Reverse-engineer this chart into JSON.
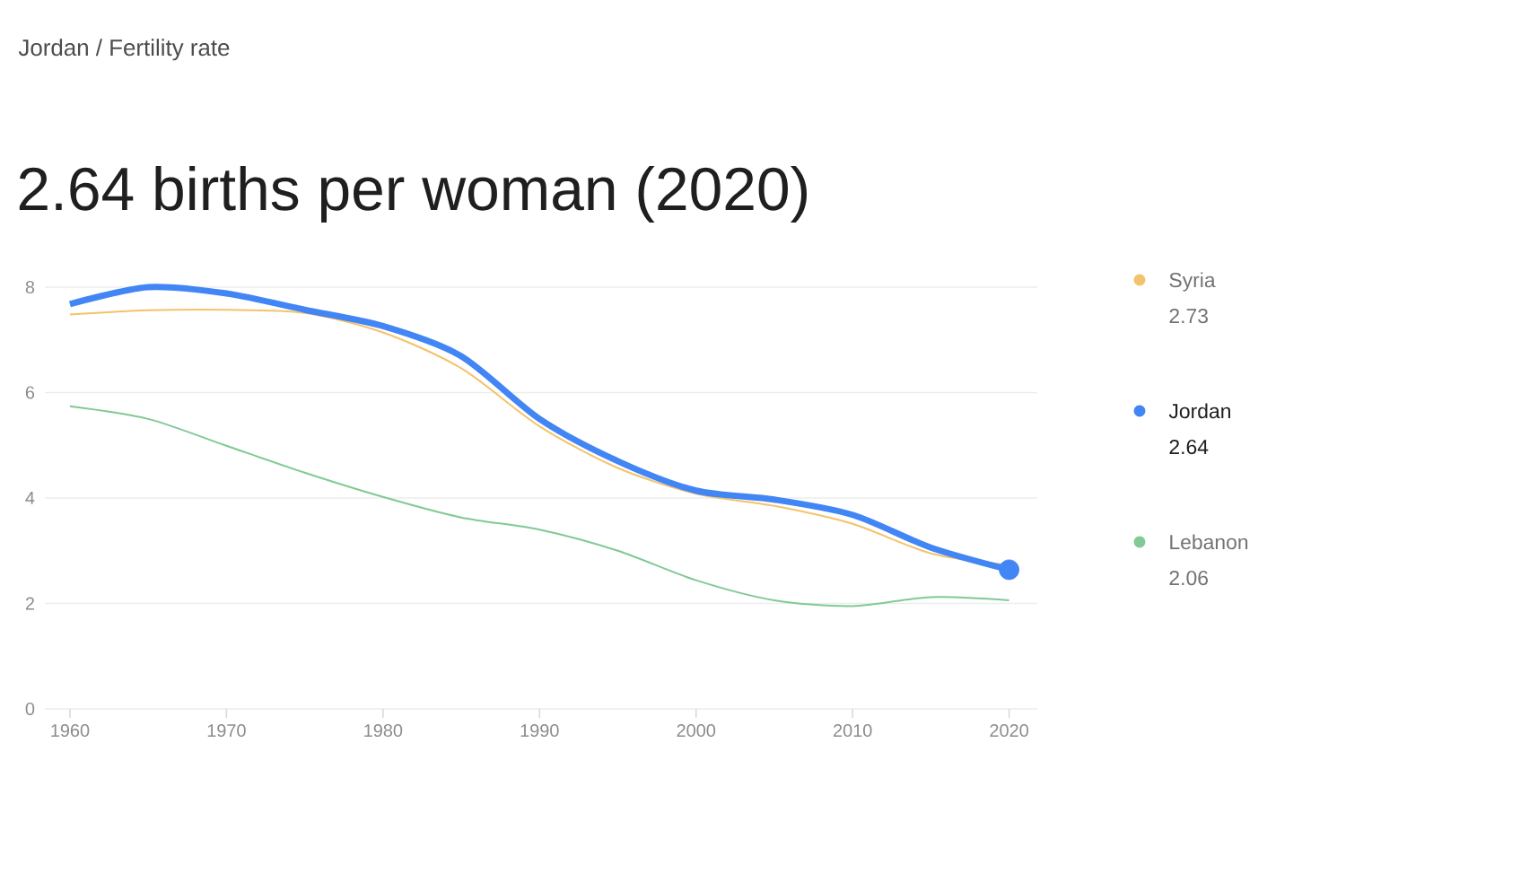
{
  "chart_data": {
    "type": "line",
    "subtitle": "Jordan / Fertility rate",
    "title": "2.64 births per woman (2020)",
    "x": [
      1960,
      1965,
      1970,
      1975,
      1980,
      1985,
      1990,
      1995,
      2000,
      2005,
      2010,
      2015,
      2020
    ],
    "series": [
      {
        "name": "Syria",
        "color": "#f4c26b",
        "values": [
          7.48,
          7.56,
          7.57,
          7.51,
          7.14,
          6.46,
          5.36,
          4.57,
          4.08,
          3.85,
          3.51,
          2.95,
          2.73
        ]
      },
      {
        "name": "Jordan",
        "color": "#4285f4",
        "values": [
          7.68,
          8.0,
          7.88,
          7.57,
          7.26,
          6.69,
          5.5,
          4.7,
          4.14,
          3.97,
          3.68,
          3.06,
          2.64
        ]
      },
      {
        "name": "Lebanon",
        "color": "#81c995",
        "values": [
          5.74,
          5.5,
          4.99,
          4.48,
          4.02,
          3.63,
          3.4,
          3.0,
          2.44,
          2.06,
          1.95,
          2.12,
          2.06
        ]
      },
      {
        "type": "scatter",
        "color": "#4285f4",
        "x": [
          2020
        ],
        "values": [
          2.64
        ]
      }
    ],
    "annotations": [
      "2.73",
      "2.64",
      "2.06"
    ],
    "xlim": [
      1958.4,
      2021.8
    ],
    "ylim": [
      0,
      8
    ],
    "xticks": [
      1960,
      1970,
      1980,
      1990,
      2000,
      2010,
      2020
    ],
    "yticks": [
      0,
      2,
      4,
      6,
      8
    ],
    "grid": "y",
    "legend": "right",
    "line_style": "solid"
  }
}
